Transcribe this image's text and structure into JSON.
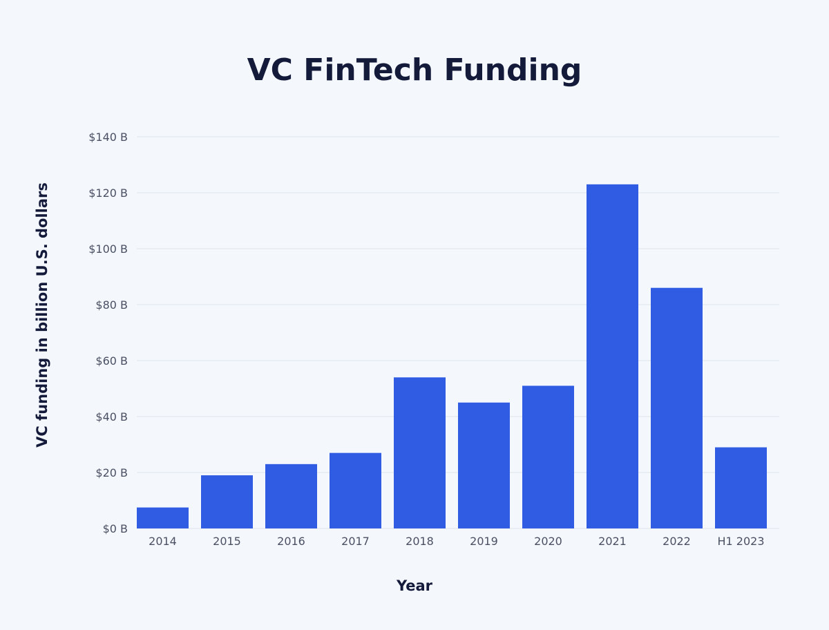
{
  "chart_data": {
    "type": "bar",
    "title": "VC FinTech Funding",
    "xlabel": "Year",
    "ylabel": "VC funding in billion U.S. dollars",
    "categories": [
      "2014",
      "2015",
      "2016",
      "2017",
      "2018",
      "2019",
      "2020",
      "2021",
      "2022",
      "H1 2023"
    ],
    "values": [
      7.5,
      19,
      23,
      27,
      54,
      45,
      51,
      123,
      86,
      29
    ],
    "ylim": [
      0,
      140
    ],
    "yticks": [
      0,
      20,
      40,
      60,
      80,
      100,
      120,
      140
    ],
    "ytick_labels": [
      "$0 B",
      "$20 B",
      "$40 B",
      "$60 B",
      "$80 B",
      "$100 B",
      "$120 B",
      "$140 B"
    ],
    "grid": true,
    "bar_color": "#2f5ce3",
    "grid_color": "#dde3ec"
  }
}
